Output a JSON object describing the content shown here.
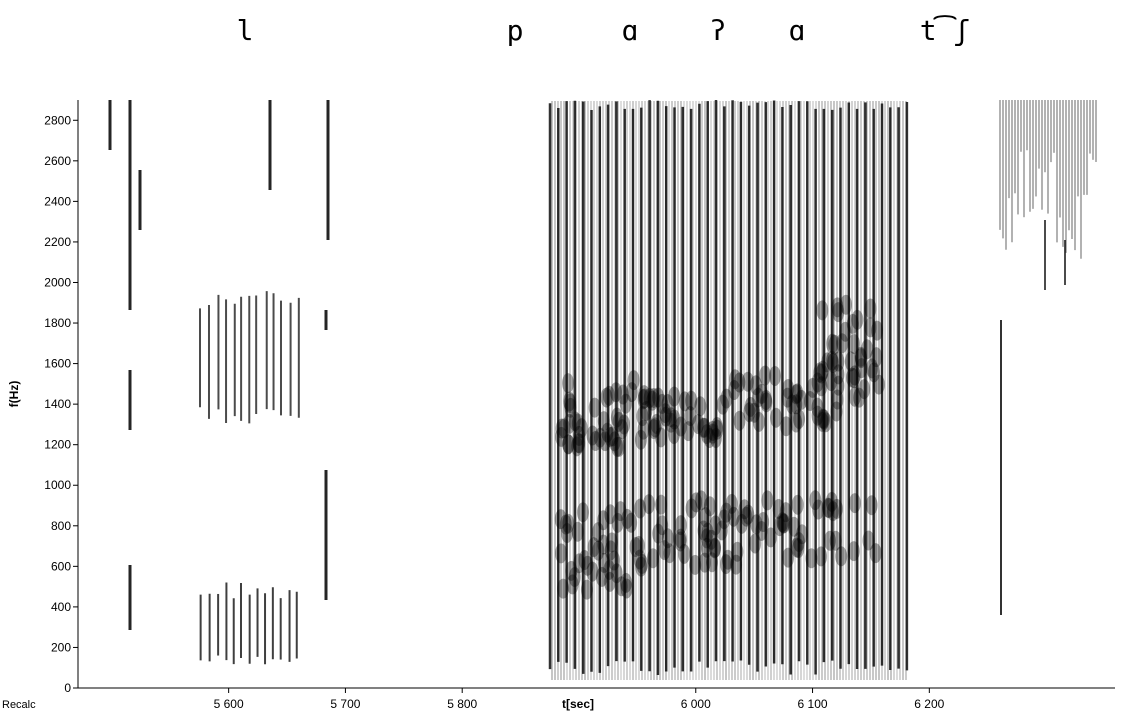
{
  "chart_data": {
    "type": "spectrogram",
    "annotations": [
      "l",
      "p",
      "ɑ",
      "ʔ",
      "ɑ",
      "t͡ʃ"
    ],
    "ylabel": "f(Hz)",
    "xlabel": "t[sec]",
    "button": "Recalc",
    "ylim": [
      0,
      2900
    ],
    "yticks": [
      0,
      200,
      400,
      600,
      800,
      1000,
      1200,
      1400,
      1600,
      1800,
      2000,
      2200,
      2400,
      2600,
      2800
    ],
    "xlim": [
      5471,
      6359
    ],
    "xticks": [
      {
        "value": 5600,
        "label": "5 600"
      },
      {
        "value": 5700,
        "label": "5 700"
      },
      {
        "value": 5800,
        "label": "5 800"
      },
      {
        "value": 6000,
        "label": "6 000"
      },
      {
        "value": 6100,
        "label": "6 100"
      },
      {
        "value": 6200,
        "label": "6 200"
      }
    ]
  }
}
